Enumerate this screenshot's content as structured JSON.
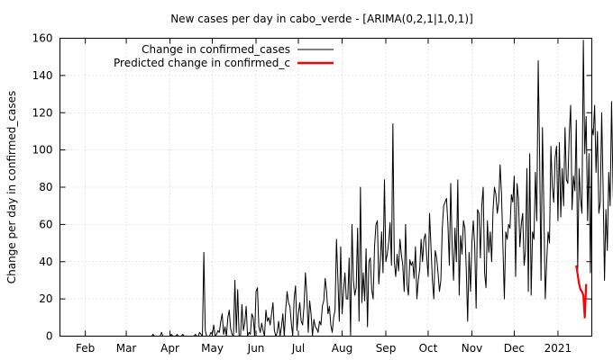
{
  "chart_data": {
    "type": "line",
    "title": "New cases per day in cabo_verde -  [ARIMA(0,2,1|1,0,1)]",
    "xlabel": "",
    "ylabel": "Change per day in confirmed_cases",
    "x_tick_labels": [
      "Feb",
      "Mar",
      "Apr",
      "May",
      "Jun",
      "Jul",
      "Aug",
      "Sep",
      "Oct",
      "Nov",
      "Dec",
      "2021"
    ],
    "y_ticks": [
      0,
      20,
      40,
      60,
      80,
      100,
      120,
      140,
      160
    ],
    "ylim": [
      0,
      160
    ],
    "xlim": [
      "2020-01-14",
      "2021-01-25"
    ],
    "grid": true,
    "legend_position": "top-left",
    "series": [
      {
        "name": "Change in confirmed_cases",
        "color": "#000000",
        "start": "2020-03-18",
        "values": [
          0,
          0,
          1,
          0,
          0,
          0,
          0,
          0,
          2,
          0,
          0,
          0,
          0,
          0,
          0,
          1,
          0,
          0,
          0,
          1,
          0,
          0,
          0,
          1,
          0,
          0,
          0,
          0,
          0,
          0,
          0,
          0,
          1,
          0,
          0,
          2,
          1,
          0,
          45,
          3,
          0,
          0,
          0,
          2,
          1,
          6,
          0,
          1,
          3,
          2,
          8,
          12,
          1,
          5,
          0,
          10,
          14,
          4,
          1,
          0,
          30,
          2,
          25,
          0,
          0,
          17,
          3,
          7,
          16,
          0,
          2,
          1,
          12,
          10,
          0,
          24,
          26,
          5,
          2,
          7,
          3,
          0,
          14,
          8,
          10,
          6,
          12,
          18,
          3,
          0,
          2,
          8,
          0,
          5,
          12,
          0,
          14,
          24,
          18,
          16,
          7,
          0,
          20,
          27,
          3,
          12,
          18,
          8,
          6,
          16,
          34,
          22,
          2,
          19,
          12,
          0,
          9,
          5,
          4,
          2,
          8,
          6,
          16,
          19,
          31,
          24,
          12,
          16,
          6,
          2,
          10,
          14,
          52,
          31,
          8,
          48,
          12,
          24,
          34,
          20,
          20,
          42,
          0,
          60,
          30,
          22,
          26,
          58,
          8,
          80,
          18,
          34,
          19,
          47,
          5,
          40,
          42,
          25,
          20,
          48,
          60,
          62,
          28,
          40,
          56,
          34,
          84,
          40,
          44,
          50,
          61,
          38,
          114,
          40,
          32,
          44,
          35,
          52,
          44,
          38,
          24,
          60,
          28,
          22,
          41,
          38,
          40,
          31,
          48,
          20,
          30,
          36,
          52,
          40,
          52,
          55,
          42,
          32,
          66,
          48,
          30,
          20,
          46,
          42,
          34,
          24,
          30,
          58,
          70,
          72,
          74,
          60,
          38,
          82,
          48,
          30,
          58,
          40,
          84,
          22,
          54,
          44,
          62,
          58,
          36,
          8,
          45,
          24,
          50,
          62,
          48,
          15,
          68,
          66,
          42,
          70,
          80,
          34,
          26,
          62,
          45,
          56,
          40,
          68,
          80,
          76,
          66,
          72,
          92,
          76,
          48,
          20,
          56,
          52,
          60,
          58,
          76,
          72,
          86,
          32,
          82,
          74,
          48,
          60,
          66,
          38,
          46,
          90,
          24,
          98,
          22,
          56,
          52,
          88,
          62,
          148,
          96,
          30,
          112,
          68,
          20,
          40,
          56,
          50,
          102,
          80,
          72,
          96,
          102,
          62,
          104,
          64,
          90,
          70,
          112,
          84,
          82,
          108,
          124,
          68,
          86,
          78,
          116,
          36,
          90,
          74,
          66,
          159,
          98,
          118,
          62,
          98,
          34,
          112,
          108,
          124,
          88,
          110,
          66,
          72,
          120,
          80,
          30,
          68,
          46,
          88,
          70,
          126,
          82,
          54,
          46,
          106,
          92,
          78,
          42,
          30,
          70,
          82,
          60,
          84,
          104,
          28,
          70,
          36,
          72,
          52,
          60,
          40,
          32,
          56,
          44,
          80,
          66,
          56,
          74,
          50,
          30,
          80,
          70,
          58,
          40,
          48,
          60,
          76,
          66,
          76,
          32,
          78,
          56,
          42,
          56,
          60,
          40,
          48,
          38,
          26,
          46,
          58,
          36,
          60,
          52,
          44,
          86,
          42,
          56,
          48,
          46,
          30,
          70,
          36,
          44,
          48,
          58,
          30,
          34,
          86,
          44,
          60,
          48,
          32,
          42,
          34,
          20,
          50,
          36,
          60,
          28,
          14,
          52,
          20,
          54,
          30,
          36,
          26,
          44,
          32,
          48,
          38,
          40,
          30,
          24,
          36,
          16,
          20,
          32,
          42,
          38,
          28,
          18,
          24,
          34,
          40,
          46,
          26,
          38,
          32
        ]
      },
      {
        "name": "Predicted change in confirmed_c",
        "color": "#ff0000",
        "start": "2021-01-14",
        "values": [
          38,
          33,
          28,
          25,
          24,
          22,
          10,
          28
        ]
      }
    ]
  }
}
